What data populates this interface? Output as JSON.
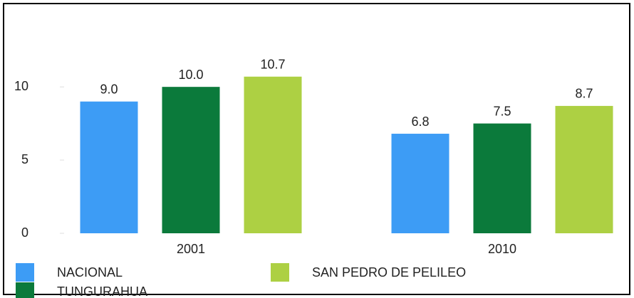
{
  "chart_data": {
    "type": "bar",
    "categories": [
      "2001",
      "2010"
    ],
    "series": [
      {
        "name": "NACIONAL",
        "color": "#3d9cf5",
        "values": [
          9.0,
          6.8
        ],
        "value_labels": [
          "9.0",
          "6.8"
        ]
      },
      {
        "name": "TUNGURAHUA",
        "color": "#0b7a3b",
        "values": [
          10.0,
          7.5
        ],
        "value_labels": [
          "10.0",
          "7.5"
        ]
      },
      {
        "name": "SAN PEDRO DE PELILEO",
        "color": "#add043",
        "values": [
          10.7,
          8.7
        ],
        "value_labels": [
          "10.7",
          "8.7"
        ]
      }
    ],
    "ylim": [
      0,
      12
    ],
    "yticks": [
      0,
      5,
      10
    ],
    "grid": false
  }
}
